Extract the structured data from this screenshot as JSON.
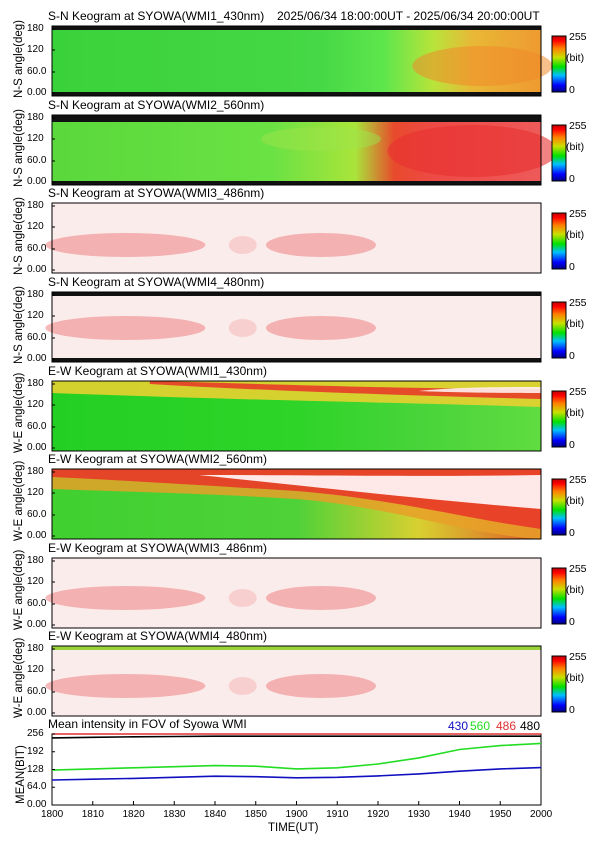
{
  "header": {
    "time_range": "2025/06/34 18:00:00UT - 2025/06/34 20:00:00UT"
  },
  "colorbar": {
    "max_label": "255",
    "unit": "(bit)",
    "min_label": "0"
  },
  "panels": [
    {
      "title": "S-N Keogram at SYOWA(WMI1_430nm)",
      "ylabel": "N-S angle(deg)",
      "yticks": [
        "180",
        "120",
        "60.0",
        "0.00"
      ]
    },
    {
      "title": "S-N Keogram at SYOWA(WMI2_560nm)",
      "ylabel": "N-S angle(deg)",
      "yticks": [
        "180",
        "120",
        "60.0",
        "0.00"
      ]
    },
    {
      "title": "S-N Keogram at SYOWA(WMI3_486nm)",
      "ylabel": "N-S angle(deg)",
      "yticks": [
        "180",
        "120",
        "60.0",
        "0.00"
      ]
    },
    {
      "title": "S-N Keogram at SYOWA(WMI4_480nm)",
      "ylabel": "N-S angle(deg)",
      "yticks": [
        "180",
        "120",
        "60.0",
        "0.00"
      ]
    },
    {
      "title": "E-W Keogram at SYOWA(WMI1_430nm)",
      "ylabel": "W-E angle(deg)",
      "yticks": [
        "180",
        "120",
        "60.0",
        "0.00"
      ]
    },
    {
      "title": "E-W Keogram at SYOWA(WMI2_560nm)",
      "ylabel": "W-E angle(deg)",
      "yticks": [
        "180",
        "120",
        "60.0",
        "0.00"
      ]
    },
    {
      "title": "E-W Keogram at SYOWA(WMI3_486nm)",
      "ylabel": "W-E angle(deg)",
      "yticks": [
        "180",
        "120",
        "60.0",
        "0.00"
      ]
    },
    {
      "title": "E-W Keogram at SYOWA(WMI4_480nm)",
      "ylabel": "W-E angle(deg)",
      "yticks": [
        "180",
        "120",
        "60.0",
        "0.00"
      ]
    }
  ],
  "chart_data": {
    "type": "line",
    "title": "Mean intensity in FOV of Syowa WMI",
    "ylabel": "MEAN(BIT)",
    "xlabel": "TIME(UT)",
    "x_ticks": [
      "1800",
      "1810",
      "1820",
      "1830",
      "1840",
      "1850",
      "1900",
      "1910",
      "1920",
      "1930",
      "1940",
      "1950",
      "2000"
    ],
    "y_ticks": [
      "256",
      "192",
      "128",
      "64.0",
      "0.00"
    ],
    "ylim": [
      0,
      256
    ],
    "legend_position": "top-right",
    "x": [
      "1800",
      "1810",
      "1820",
      "1830",
      "1840",
      "1850",
      "1900",
      "1910",
      "1920",
      "1930",
      "1940",
      "1950",
      "2000"
    ],
    "series": [
      {
        "name": "430",
        "color": "#1010c0",
        "values": [
          90,
          93,
          96,
          100,
          104,
          102,
          98,
          100,
          105,
          112,
          122,
          130,
          135
        ]
      },
      {
        "name": "560",
        "color": "#22dd22",
        "values": [
          126,
          130,
          134,
          138,
          142,
          140,
          130,
          134,
          148,
          170,
          200,
          214,
          222
        ]
      },
      {
        "name": "486",
        "color": "#e03030",
        "values": [
          256,
          256,
          256,
          256,
          256,
          256,
          256,
          256,
          256,
          256,
          256,
          256,
          256
        ]
      },
      {
        "name": "480",
        "color": "#000000",
        "values": [
          242,
          244,
          246,
          247,
          248,
          248,
          248,
          248,
          248,
          248,
          248,
          248,
          248
        ]
      }
    ]
  }
}
